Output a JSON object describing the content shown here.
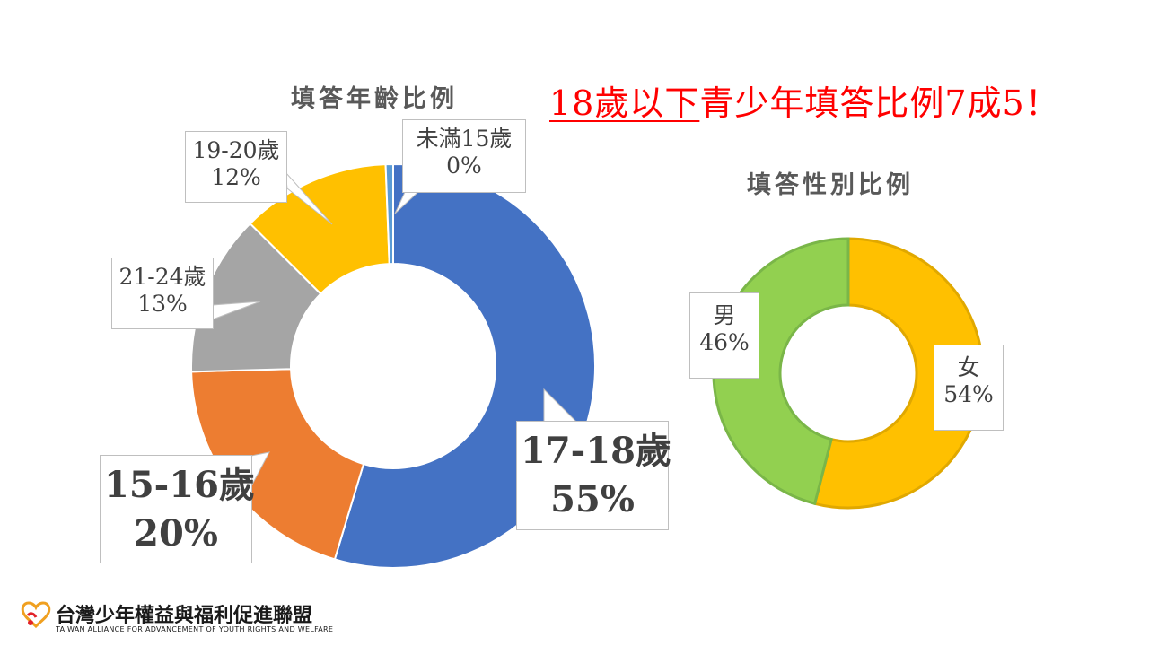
{
  "headline": {
    "underlined": "18歲以下",
    "rest": "青少年填答比例7成5！"
  },
  "chart_data": [
    {
      "type": "pie",
      "title": "填答年齡比例",
      "donut": true,
      "categories": [
        "17-18歲",
        "15-16歲",
        "21-24歲",
        "19-20歲",
        "未滿15歲"
      ],
      "values": [
        55,
        20,
        13,
        12,
        0
      ],
      "value_labels": [
        "55%",
        "20%",
        "13%",
        "12%",
        "0%"
      ],
      "colors": [
        "#4472c4",
        "#ed7d31",
        "#a5a5a5",
        "#ffc000",
        "#5b9bd5"
      ]
    },
    {
      "type": "pie",
      "title": "填答性別比例",
      "donut": true,
      "categories": [
        "女",
        "男"
      ],
      "values": [
        54,
        46
      ],
      "value_labels": [
        "54%",
        "46%"
      ],
      "colors": [
        "#ffc000",
        "#92d050"
      ]
    }
  ],
  "org": {
    "name": "台灣少年權益與福利促進聯盟",
    "english": "TAIWAN ALLIANCE FOR ADVANCEMENT OF YOUTH RIGHTS AND WELFARE"
  }
}
